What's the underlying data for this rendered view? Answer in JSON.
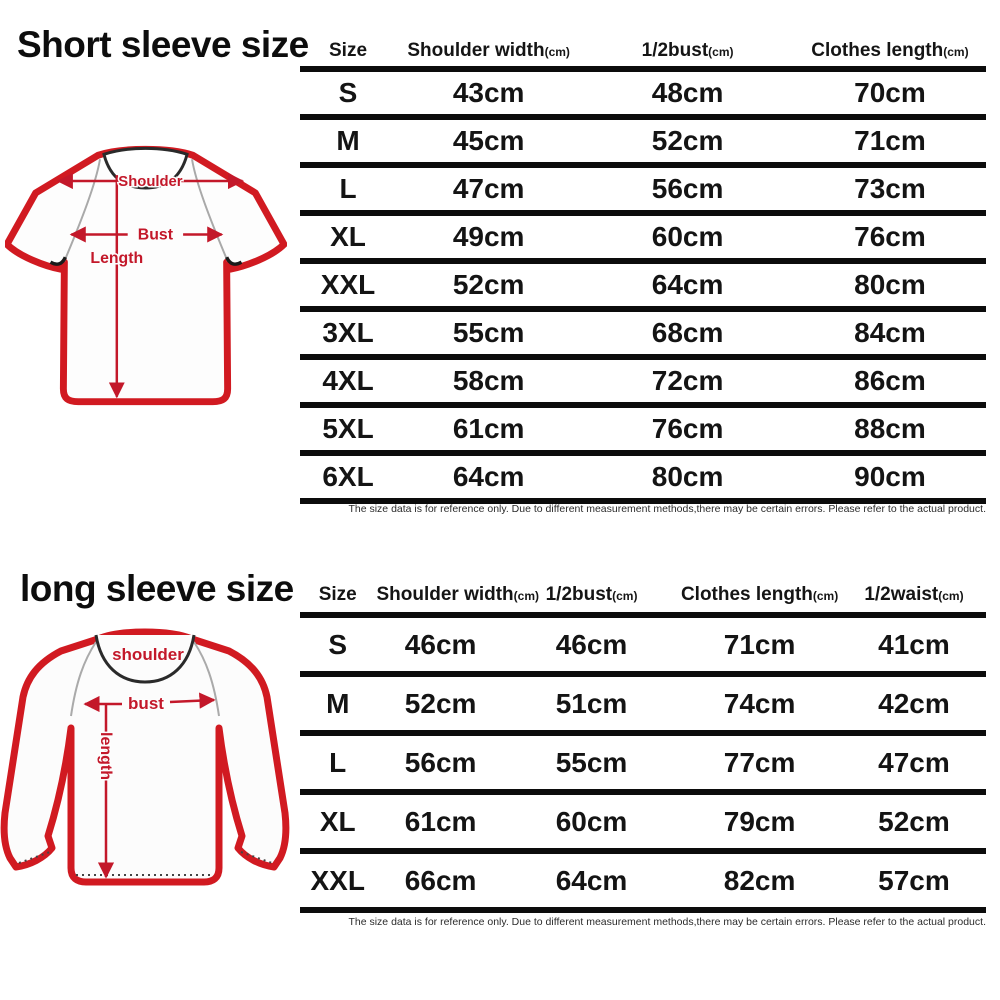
{
  "colors": {
    "accent_red_outline": "#d11a21",
    "accent_red_label": "#c3182a",
    "table_line": "#0c0c0c",
    "text": "#141414",
    "background": "#ffffff"
  },
  "short_sleeve": {
    "title": "Short sleeve size",
    "diagram_labels": {
      "shoulder": "Shoulder",
      "bust": "Bust",
      "length": "Length"
    },
    "table": {
      "headers": [
        {
          "label": "Size",
          "unit": ""
        },
        {
          "label": "Shoulder width",
          "unit": "(cm)"
        },
        {
          "label": "1/2bust",
          "unit": "(cm)"
        },
        {
          "label": "Clothes length",
          "unit": "(cm)"
        }
      ],
      "rows": [
        [
          "S",
          "43cm",
          "48cm",
          "70cm"
        ],
        [
          "M",
          "45cm",
          "52cm",
          "71cm"
        ],
        [
          "L",
          "47cm",
          "56cm",
          "73cm"
        ],
        [
          "XL",
          "49cm",
          "60cm",
          "76cm"
        ],
        [
          "XXL",
          "52cm",
          "64cm",
          "80cm"
        ],
        [
          "3XL",
          "55cm",
          "68cm",
          "84cm"
        ],
        [
          "4XL",
          "58cm",
          "72cm",
          "86cm"
        ],
        [
          "5XL",
          "61cm",
          "76cm",
          "88cm"
        ],
        [
          "6XL",
          "64cm",
          "80cm",
          "90cm"
        ]
      ]
    },
    "note": "The size data is for reference only. Due to different measurement methods,there may be certain errors. Please refer to the actual product."
  },
  "long_sleeve": {
    "title": "long sleeve size",
    "diagram_labels": {
      "shoulder": "shoulder",
      "bust": "bust",
      "length": "length"
    },
    "table": {
      "headers": [
        {
          "label": "Size",
          "unit": ""
        },
        {
          "label": "Shoulder width",
          "unit": "(cm)"
        },
        {
          "label": "1/2bust",
          "unit": "(cm)"
        },
        {
          "label": "Clothes length",
          "unit": "(cm)"
        },
        {
          "label": "1/2waist",
          "unit": "(cm)"
        }
      ],
      "rows": [
        [
          "S",
          "46cm",
          "46cm",
          "71cm",
          "41cm"
        ],
        [
          "M",
          "52cm",
          "51cm",
          "74cm",
          "42cm"
        ],
        [
          "L",
          "56cm",
          "55cm",
          "77cm",
          "47cm"
        ],
        [
          "XL",
          "61cm",
          "60cm",
          "79cm",
          "52cm"
        ],
        [
          "XXL",
          "66cm",
          "64cm",
          "82cm",
          "57cm"
        ]
      ]
    },
    "note": "The size data is for reference only. Due to different measurement methods,there may be certain errors. Please refer to the actual product."
  }
}
